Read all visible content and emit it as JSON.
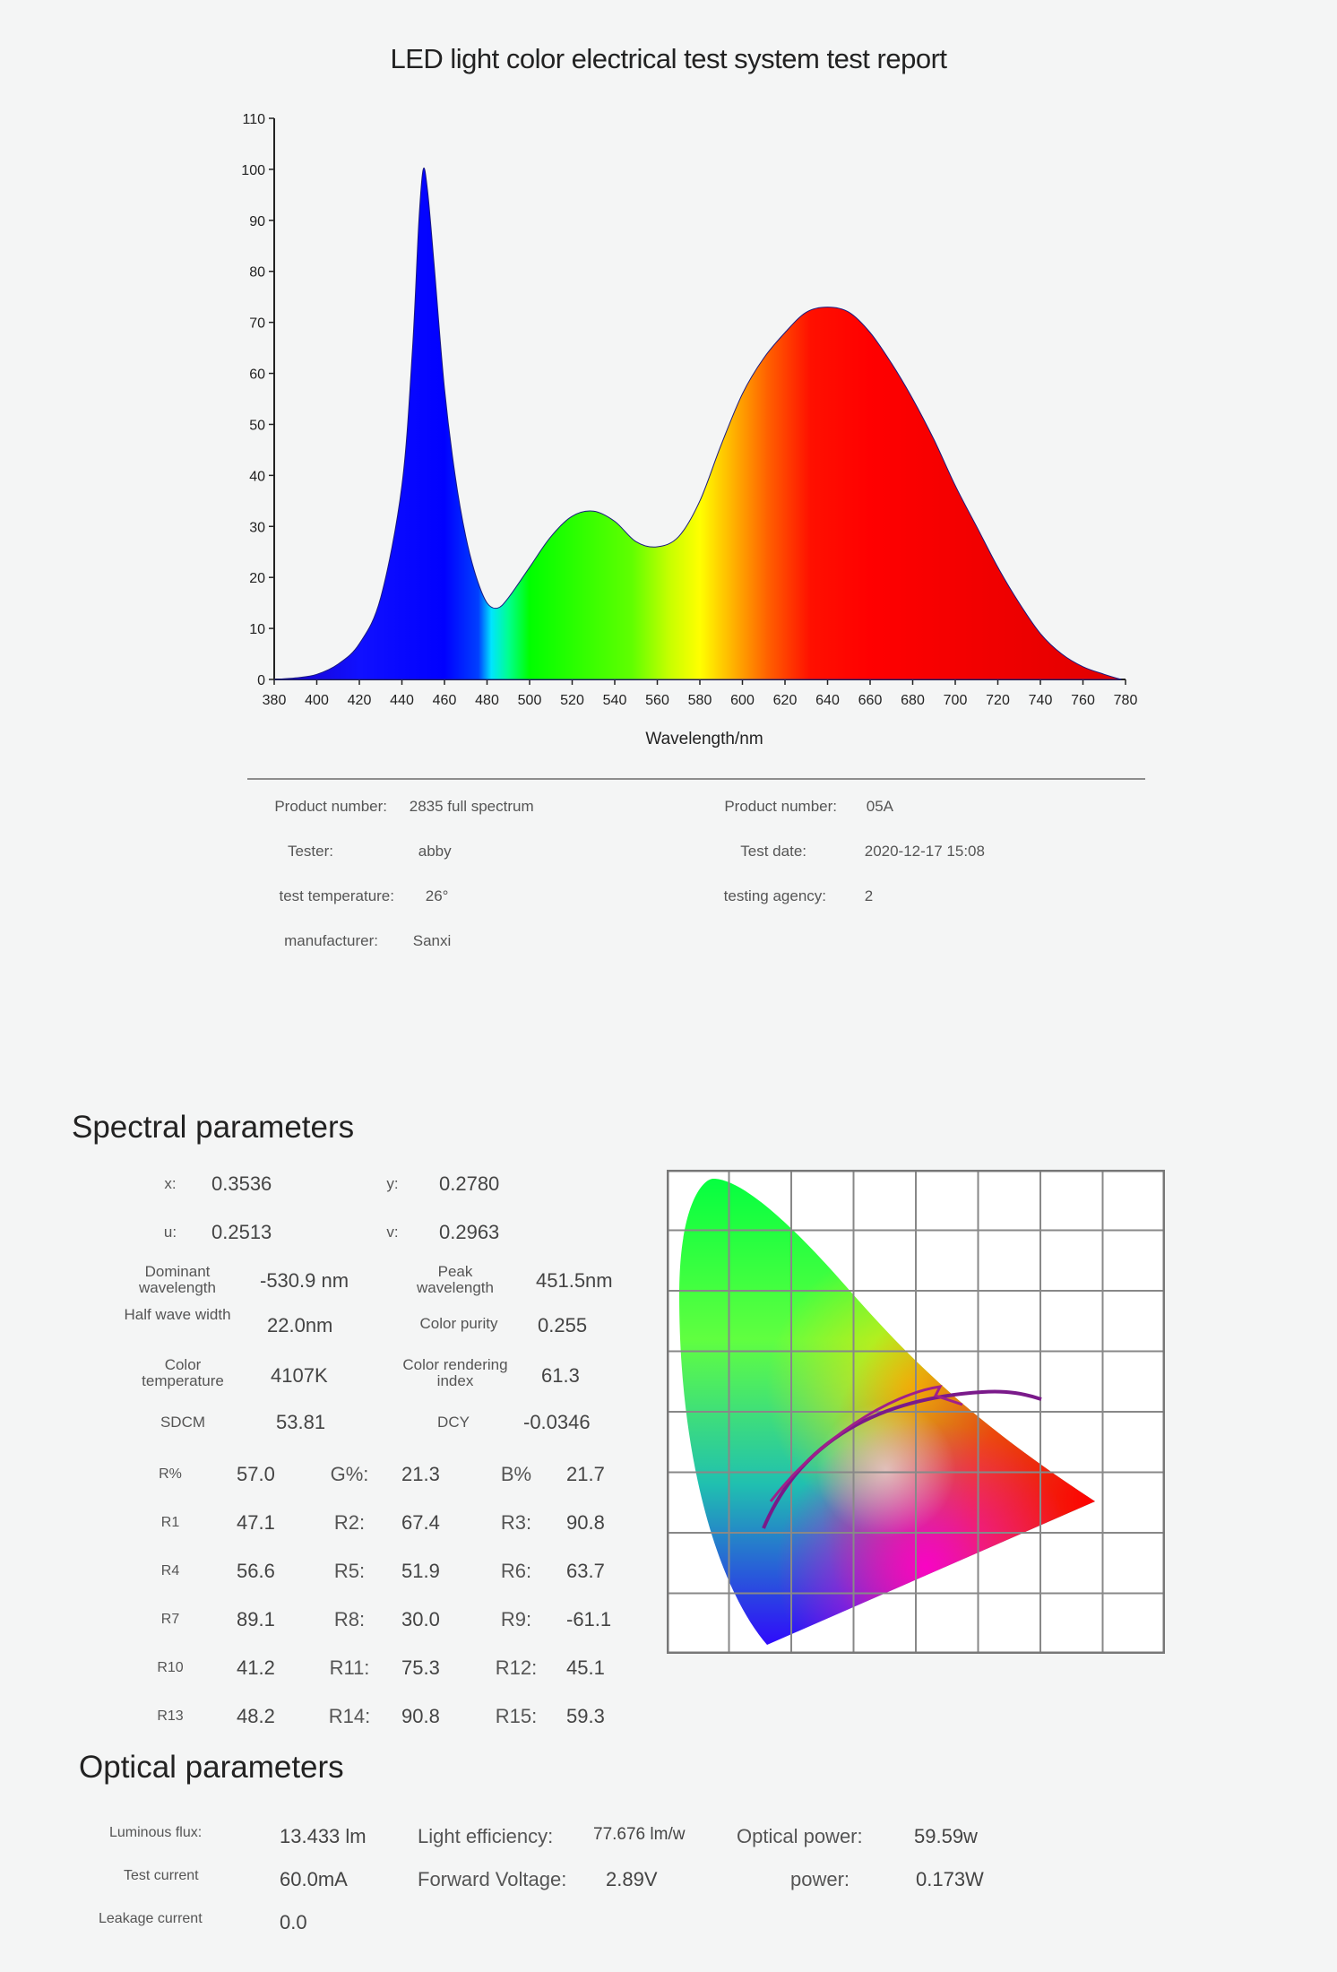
{
  "report": {
    "title": "LED light color electrical test system test report"
  },
  "chart_data": {
    "type": "area",
    "title": "LED light color electrical test system test report",
    "xlabel": "Wavelength/nm",
    "ylabel": "",
    "xlim": [
      380,
      780
    ],
    "ylim": [
      0,
      110
    ],
    "x_ticks": [
      380,
      400,
      420,
      440,
      460,
      480,
      500,
      520,
      540,
      560,
      580,
      600,
      620,
      640,
      660,
      680,
      700,
      720,
      740,
      760,
      780
    ],
    "y_ticks": [
      0,
      10,
      20,
      30,
      40,
      50,
      60,
      70,
      80,
      90,
      100,
      110
    ],
    "grid": false,
    "fill": "visible spectrum colors",
    "series": [
      {
        "x": [
          380,
          390,
          400,
          410,
          420,
          430,
          440,
          445,
          448,
          450,
          452,
          455,
          460,
          465,
          470,
          475,
          480,
          485,
          490,
          500,
          510,
          520,
          530,
          540,
          550,
          560,
          570,
          580,
          590,
          600,
          610,
          620,
          630,
          640,
          650,
          660,
          670,
          680,
          690,
          700,
          710,
          720,
          730,
          740,
          750,
          760,
          770,
          778
        ],
        "y": [
          0,
          0.3,
          1,
          3,
          7,
          16,
          38,
          65,
          90,
          100,
          96,
          82,
          57,
          40,
          28,
          20,
          15,
          14,
          16,
          22,
          28,
          32,
          33,
          31,
          27,
          26,
          28,
          35,
          46,
          56,
          63,
          68,
          72,
          73,
          72,
          68,
          62,
          55,
          47,
          38,
          30,
          22,
          15,
          9,
          5,
          2.5,
          1,
          0
        ]
      }
    ]
  },
  "info": {
    "rows": [
      {
        "label": "Product number:",
        "value": "2835 full spectrum"
      },
      {
        "label": "Tester:",
        "value": "abby"
      },
      {
        "label": "test temperature:",
        "value": "26°"
      },
      {
        "label": "manufacturer:",
        "value": "Sanxi"
      },
      {
        "label": "Product number:",
        "value": "05A"
      },
      {
        "label": "Test date:",
        "value": "2020-12-17  15:08"
      },
      {
        "label": "testing agency:",
        "value": "2"
      }
    ]
  },
  "spectral": {
    "title": "Spectral parameters",
    "items": [
      {
        "label": "x:",
        "value": "0.3536"
      },
      {
        "label": "y:",
        "value": "0.2780"
      },
      {
        "label": "u:",
        "value": "0.2513"
      },
      {
        "label": "v:",
        "value": "0.2963"
      },
      {
        "label": "Dominant wavelength",
        "value": "-530.9 nm"
      },
      {
        "label": "Peak wavelength",
        "value": "451.5nm"
      },
      {
        "label": "Half wave width",
        "value": "22.0nm"
      },
      {
        "label": "Color purity",
        "value": "0.255"
      },
      {
        "label": "Color temperature",
        "value": "4107K"
      },
      {
        "label": "Color rendering index",
        "value": "61.3"
      },
      {
        "label": "SDCM",
        "value": "53.81"
      },
      {
        "label": "DCY",
        "value": "-0.0346"
      }
    ],
    "grid": [
      {
        "label": "R%",
        "value": "57.0"
      },
      {
        "label": "G%:",
        "value": "21.3"
      },
      {
        "label": "B%",
        "value": "21.7"
      },
      {
        "label": "R1",
        "value": "47.1"
      },
      {
        "label": "R2:",
        "value": "67.4"
      },
      {
        "label": "R3:",
        "value": "90.8"
      },
      {
        "label": "R4",
        "value": "56.6"
      },
      {
        "label": "R5:",
        "value": "51.9"
      },
      {
        "label": "R6:",
        "value": "63.7"
      },
      {
        "label": "R7",
        "value": "89.1"
      },
      {
        "label": "R8:",
        "value": "30.0"
      },
      {
        "label": "R9:",
        "value": "-61.1"
      },
      {
        "label": "R10",
        "value": "41.2"
      },
      {
        "label": "R11:",
        "value": "75.3"
      },
      {
        "label": "R12:",
        "value": "45.1"
      },
      {
        "label": "R13",
        "value": "48.2"
      },
      {
        "label": "R14:",
        "value": "90.8"
      },
      {
        "label": "R15:",
        "value": "59.3"
      }
    ]
  },
  "optical": {
    "title": "Optical parameters",
    "items": [
      {
        "label": "Luminous flux:",
        "value": "13.433 lm"
      },
      {
        "label": "Light efficiency:",
        "value": "77.676 lm/w"
      },
      {
        "label": "Optical power:",
        "value": "59.59w"
      },
      {
        "label": "Test current",
        "value": "60.0mA"
      },
      {
        "label": "Forward Voltage:",
        "value": "2.89V"
      },
      {
        "label": "power:",
        "value": "0.173W"
      },
      {
        "label": "Leakage current",
        "value": "0.0"
      }
    ]
  }
}
